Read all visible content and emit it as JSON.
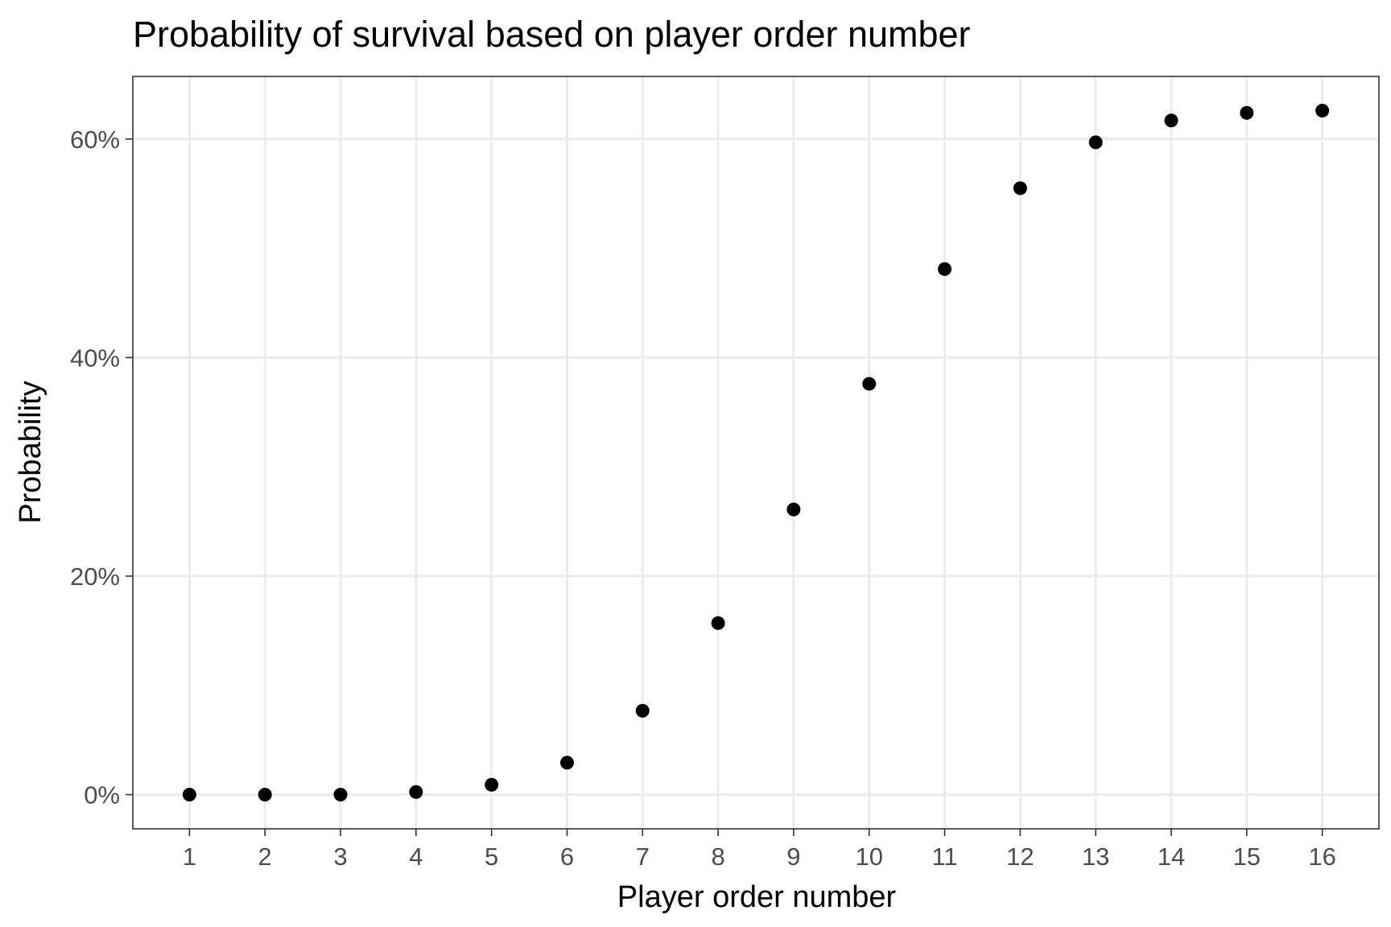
{
  "chart_data": {
    "type": "scatter",
    "title": "Probability of survival based on player order number",
    "xlabel": "Player order number",
    "ylabel": "Probability",
    "x": [
      1,
      2,
      3,
      4,
      5,
      6,
      7,
      8,
      9,
      10,
      11,
      12,
      13,
      14,
      15,
      16
    ],
    "y": [
      0.0,
      0.0,
      0.0,
      0.0024,
      0.009,
      0.0293,
      0.0768,
      0.157,
      0.261,
      0.376,
      0.481,
      0.555,
      0.597,
      0.617,
      0.624,
      0.626
    ],
    "xticks": [
      "1",
      "2",
      "3",
      "4",
      "5",
      "6",
      "7",
      "8",
      "9",
      "10",
      "11",
      "12",
      "13",
      "14",
      "15",
      "16"
    ],
    "yticks": [
      0,
      0.2,
      0.4,
      0.6
    ],
    "ytick_labels": [
      "0%",
      "20%",
      "40%",
      "60%"
    ],
    "xlim": [
      0.25,
      16.75
    ],
    "ylim": [
      -0.0313,
      0.6573
    ],
    "grid": true,
    "legend": "none",
    "point_color": "#000000"
  }
}
